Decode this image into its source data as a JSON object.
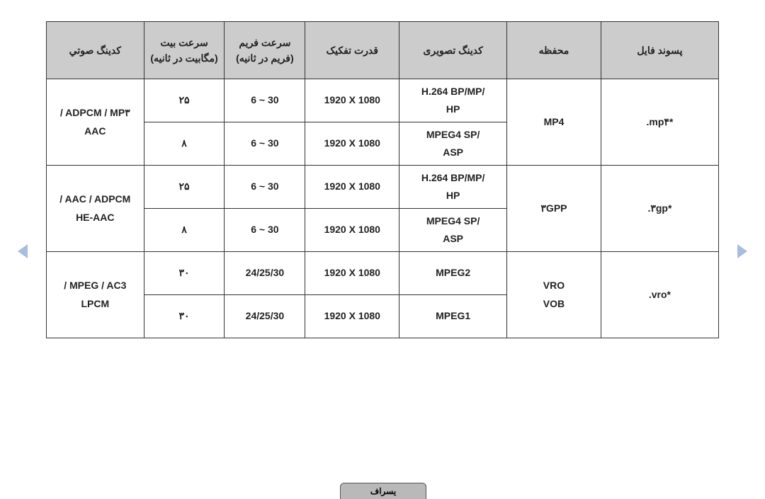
{
  "headers": {
    "audio": "كدينگ صوتي",
    "bitrate": "سرعت بیت\n(مگابیت در ثانیه)",
    "fps": "سرعت فریم\n(فریم در ثانیه)",
    "resolution": "قدرت تفکیک",
    "vcodec": "کدینگ تصویری",
    "container": "محفظه",
    "ext": "پسوند فایل"
  },
  "rows": [
    {
      "audio": "/ ADPCM / MP۳\nAAC",
      "ext": ".mp۴*",
      "container": "MP4",
      "sub": [
        {
          "bitrate": "۲۵",
          "fps": "6 ~ 30",
          "res": "1920 X 1080",
          "vcodec": "H.264 BP/MP/\nHP"
        },
        {
          "bitrate": "۸",
          "fps": "6 ~ 30",
          "res": "1920 X 1080",
          "vcodec": "MPEG4 SP/\nASP"
        }
      ]
    },
    {
      "audio": "/ AAC / ADPCM\nHE-AAC",
      "ext": ".۳gp*",
      "container": "۳GPP",
      "sub": [
        {
          "bitrate": "۲۵",
          "fps": "6 ~ 30",
          "res": "1920 X 1080",
          "vcodec": "H.264 BP/MP/\nHP"
        },
        {
          "bitrate": "۸",
          "fps": "6 ~ 30",
          "res": "1920 X 1080",
          "vcodec": "MPEG4 SP/\nASP"
        }
      ]
    },
    {
      "audio": "/ MPEG / AC3\nLPCM",
      "ext": ".vro*",
      "container": "VRO\nVOB",
      "sub": [
        {
          "bitrate": "۳۰",
          "fps": "24/25/30",
          "res": "1920 X 1080",
          "vcodec": "MPEG2"
        },
        {
          "bitrate": "۳۰",
          "fps": "24/25/30",
          "res": "1920 X 1080",
          "vcodec": "MPEG1"
        }
      ]
    }
  ],
  "bottom_label": "یسراف",
  "style": {
    "header_bg": "#cccccc",
    "border_color": "#333333",
    "text_color": "#222222",
    "nav_color": "#a9bde0",
    "btn_bg": "#b9b9b9",
    "font_size_cell": 14,
    "font_size_btn": 12
  }
}
